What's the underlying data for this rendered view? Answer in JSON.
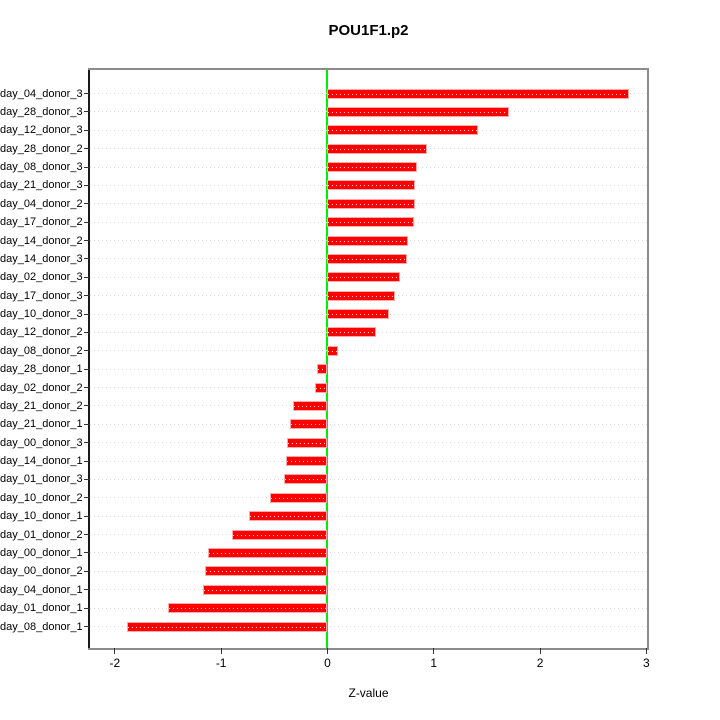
{
  "chart_data": {
    "type": "bar",
    "orientation": "horizontal",
    "title": "POU1F1.p2",
    "xlabel": "Z-value",
    "ylabel": "",
    "categories": [
      "day_04_donor_3",
      "day_28_donor_3",
      "day_12_donor_3",
      "day_28_donor_2",
      "day_08_donor_3",
      "day_21_donor_3",
      "day_04_donor_2",
      "day_17_donor_2",
      "day_14_donor_2",
      "day_14_donor_3",
      "day_02_donor_3",
      "day_17_donor_3",
      "day_10_donor_3",
      "day_12_donor_2",
      "day_08_donor_2",
      "day_28_donor_1",
      "day_02_donor_2",
      "day_21_donor_2",
      "day_21_donor_1",
      "day_00_donor_3",
      "day_14_donor_1",
      "day_01_donor_3",
      "day_10_donor_2",
      "day_10_donor_1",
      "day_01_donor_2",
      "day_00_donor_1",
      "day_00_donor_2",
      "day_04_donor_1",
      "day_01_donor_1",
      "day_08_donor_1"
    ],
    "values": [
      2.84,
      1.71,
      1.42,
      0.94,
      0.84,
      0.82,
      0.82,
      0.81,
      0.76,
      0.75,
      0.68,
      0.64,
      0.58,
      0.46,
      0.1,
      -0.1,
      -0.12,
      -0.32,
      -0.35,
      -0.38,
      -0.39,
      -0.41,
      -0.54,
      -0.74,
      -0.9,
      -1.12,
      -1.15,
      -1.17,
      -1.5,
      -1.89
    ],
    "xlim": [
      -2.234,
      3.006
    ],
    "xticks": [
      -2,
      -1,
      0,
      1,
      2,
      3
    ],
    "grid": "horizontal dotted line per bar",
    "legend": "none",
    "bar_color": "#ff0000",
    "bar_edge_color": "#ffaaaa",
    "bar_dot_color": "rgba(255,255,255,0.85)",
    "zero_line_color": "#00ee00",
    "frame_color": "#8c8c8c",
    "grid_color": "#d9d9d9",
    "axis_color": "#333333"
  }
}
